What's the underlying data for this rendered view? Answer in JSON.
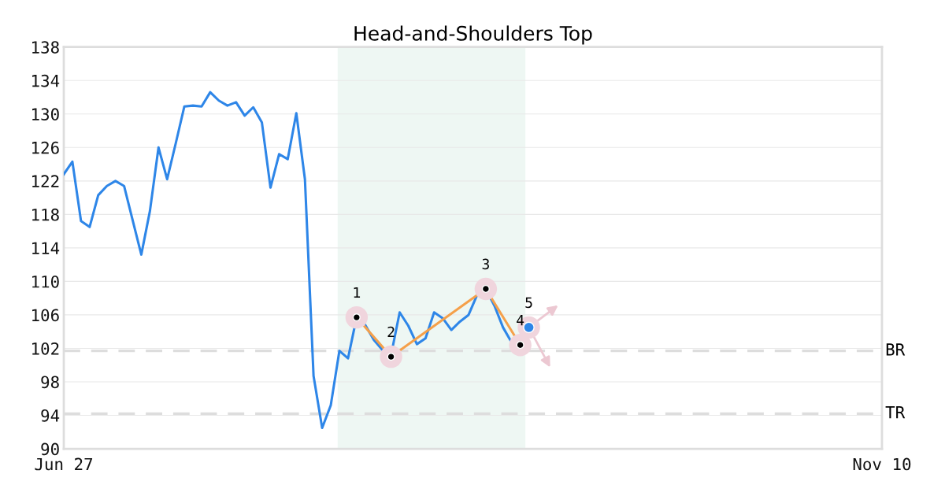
{
  "chart_data": {
    "type": "line",
    "title": "Head-and-Shoulders Top",
    "categories": [
      "Jun 27",
      null,
      null,
      null,
      null,
      null,
      null,
      null,
      null,
      null,
      null,
      null,
      null,
      null,
      null,
      null,
      null,
      null,
      null,
      null,
      null,
      null,
      null,
      null,
      null,
      null,
      null,
      null,
      null,
      null,
      null,
      null,
      null,
      null,
      null,
      null,
      null,
      null,
      null,
      null,
      null,
      null,
      null,
      null,
      null,
      null,
      null,
      null,
      null,
      null,
      null,
      null,
      null,
      null,
      null,
      null,
      null,
      null,
      null,
      null,
      null,
      null,
      null,
      null,
      null,
      null,
      null,
      null,
      null,
      null,
      null,
      null,
      null,
      null,
      null,
      null,
      null,
      null,
      null,
      null,
      null,
      null,
      null,
      null,
      null,
      null,
      null,
      null,
      null,
      null,
      null,
      null,
      null,
      null,
      null,
      "Nov 10"
    ],
    "ylim": [
      90,
      138
    ],
    "yticks": [
      90,
      94,
      98,
      102,
      106,
      110,
      114,
      118,
      122,
      126,
      130,
      134,
      138
    ],
    "grid": "y",
    "series": [
      {
        "color": "#2e86e8",
        "values": [
          122.8,
          124.3,
          117.2,
          116.5,
          120.3,
          121.4,
          122.0,
          121.4,
          117.3,
          113.2,
          118.4,
          126.0,
          122.2,
          126.5,
          130.9,
          131.0,
          130.9,
          132.6,
          131.6,
          131.0,
          131.4,
          129.8,
          130.8,
          129.0,
          121.2,
          125.2,
          124.6,
          130.1,
          122.2,
          98.7,
          92.5,
          95.2,
          101.7,
          100.8,
          105.7,
          104.8,
          103.0,
          101.8,
          101.2,
          106.3,
          104.7,
          102.5,
          103.2,
          106.3,
          105.6,
          104.2,
          105.2,
          106.0,
          108.4,
          109.1,
          107.1,
          104.5,
          102.7,
          null,
          null,
          null,
          null,
          null,
          null,
          null,
          null,
          null,
          null,
          null,
          null,
          null,
          null,
          null,
          null,
          null,
          null,
          null,
          null,
          null,
          null,
          null,
          null,
          null,
          null,
          null,
          null,
          null,
          null,
          null,
          null,
          null,
          null,
          null,
          null,
          null,
          null,
          null,
          null,
          null,
          null,
          null
        ]
      },
      {
        "type": "line",
        "color": "#f5a04a",
        "values": [
          null,
          null,
          null,
          null,
          null,
          null,
          null,
          null,
          null,
          null,
          null,
          null,
          null,
          null,
          null,
          null,
          null,
          null,
          null,
          null,
          null,
          null,
          null,
          null,
          null,
          null,
          null,
          null,
          null,
          null,
          null,
          null,
          null,
          null,
          105.7,
          null,
          null,
          null,
          101.0,
          null,
          null,
          null,
          null,
          null,
          null,
          null,
          null,
          null,
          null,
          109.1,
          null,
          null,
          null,
          102.4,
          null,
          null,
          null,
          null,
          null,
          null,
          null,
          null,
          null,
          null,
          null,
          null,
          null,
          null,
          null,
          null,
          null,
          null,
          null,
          null,
          null,
          null,
          null,
          null,
          null,
          null,
          null,
          null,
          null,
          null,
          null,
          null,
          null,
          null,
          null,
          null,
          null,
          null,
          null,
          null,
          null,
          null
        ]
      },
      {
        "type": "scatter",
        "color": "#000000",
        "values": [
          null,
          null,
          null,
          null,
          null,
          null,
          null,
          null,
          null,
          null,
          null,
          null,
          null,
          null,
          null,
          null,
          null,
          null,
          null,
          null,
          null,
          null,
          null,
          null,
          null,
          null,
          null,
          null,
          null,
          null,
          null,
          null,
          null,
          null,
          105.7,
          null,
          null,
          null,
          101.0,
          null,
          null,
          null,
          null,
          null,
          null,
          null,
          null,
          null,
          null,
          109.1,
          null,
          null,
          null,
          102.4,
          null,
          null,
          null,
          null,
          null,
          null,
          null,
          null,
          null,
          null,
          null,
          null,
          null,
          null,
          null,
          null,
          null,
          null,
          null,
          null,
          null,
          null,
          null,
          null,
          null,
          null,
          null,
          null,
          null,
          null,
          null,
          null,
          null,
          null,
          null,
          null,
          null,
          null,
          null,
          null,
          null,
          null
        ]
      },
      {
        "type": "scatter",
        "color": "#2e86e8",
        "values": [
          null,
          null,
          null,
          null,
          null,
          null,
          null,
          null,
          null,
          null,
          null,
          null,
          null,
          null,
          null,
          null,
          null,
          null,
          null,
          null,
          null,
          null,
          null,
          null,
          null,
          null,
          null,
          null,
          null,
          null,
          null,
          null,
          null,
          null,
          null,
          null,
          null,
          null,
          null,
          null,
          null,
          null,
          null,
          null,
          null,
          null,
          null,
          null,
          null,
          null,
          null,
          null,
          null,
          null,
          104.5,
          null,
          null,
          null,
          null,
          null,
          null,
          null,
          null,
          null,
          null,
          null,
          null,
          null,
          null,
          null,
          null,
          null,
          null,
          null,
          null,
          null,
          null,
          null,
          null,
          null,
          null,
          null,
          null,
          null,
          null,
          null,
          null,
          null,
          null,
          null,
          null,
          null,
          null,
          null,
          null,
          null
        ]
      }
    ],
    "ref_lines": [
      {
        "axis": "y",
        "value": 101.7,
        "label": "BR",
        "color": "#dddddd",
        "line_style": "dashed"
      },
      {
        "axis": "y",
        "value": 94.2,
        "label": "TR",
        "color": "#dddddd",
        "line_style": "dashed"
      }
    ],
    "annotations": [
      "1",
      "2",
      "3",
      "4",
      "5"
    ]
  }
}
